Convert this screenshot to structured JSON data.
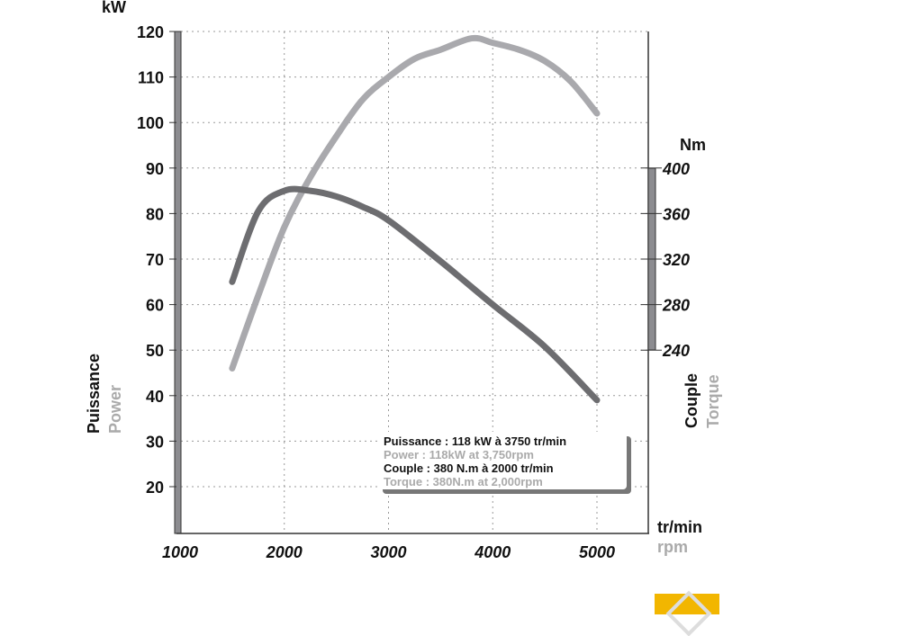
{
  "chart_data": {
    "type": "line",
    "title": "",
    "xlabel": "tr/min",
    "xlabel_en": "rpm",
    "ylabel": "Puissance",
    "ylabel_en": "Power",
    "ylabel_unit": "kW",
    "y2label": "Couple",
    "y2label_en": "Torque",
    "y2label_unit": "Nm",
    "xlim": [
      1000,
      5500
    ],
    "ylim": [
      10,
      120
    ],
    "y2lim": [
      240,
      400
    ],
    "xticks": [
      "1000",
      "2000",
      "3000",
      "4000",
      "5000"
    ],
    "yticks": [
      "20",
      "30",
      "40",
      "50",
      "60",
      "70",
      "80",
      "90",
      "100",
      "110",
      "120"
    ],
    "y2ticks": [
      "240",
      "280",
      "320",
      "360",
      "400"
    ],
    "grid": true,
    "series": [
      {
        "name": "Power",
        "axis": "kW",
        "color": "#a9a9ad",
        "x": [
          1500,
          1750,
          2000,
          2250,
          2500,
          2750,
          3000,
          3250,
          3500,
          3800,
          4000,
          4250,
          4500,
          4750,
          5000
        ],
        "values": [
          46,
          62,
          77,
          88,
          97,
          105,
          110,
          114,
          116,
          118.5,
          117.5,
          116,
          113.5,
          109,
          102
        ]
      },
      {
        "name": "Torque",
        "axis": "Nm",
        "color": "#6d6d70",
        "x": [
          1500,
          1750,
          2000,
          2250,
          2500,
          2750,
          3000,
          3500,
          4000,
          4500,
          5000
        ],
        "values": [
          300,
          362,
          380,
          380,
          375,
          366,
          354,
          318,
          280,
          243,
          196
        ]
      }
    ],
    "legend": {
      "line1": "Puissance : 118 kW à 3750 tr/min",
      "line2": "Power : 118kW at 3,750rpm",
      "line3": "Couple : 380 N.m à 2000 tr/min",
      "line4": "Torque : 380N.m at 2,000rpm",
      "placement": "bottom-right"
    }
  }
}
